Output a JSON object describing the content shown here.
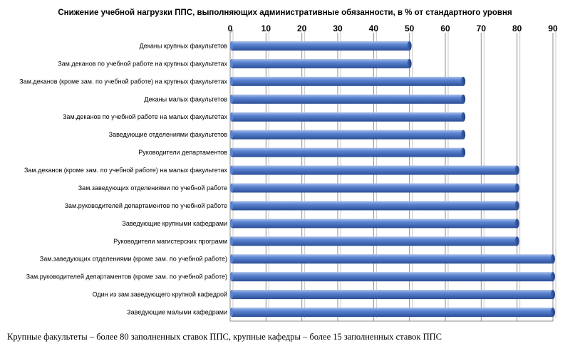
{
  "chart_data": {
    "type": "bar",
    "orientation": "horizontal",
    "title": "Снижение учебной нагрузки ППС, выполняющих административные обязанности, в % от стандартного уровня",
    "categories": [
      "Деканы крупных факультетов",
      "Зам.деканов по учебной работе на крупных факультетах",
      "Зам.деканов (кроме зам. по учебной работе) на крупных факультетах",
      "Деканы малых факультетов",
      "Зам.деканов по учебной работе на малых факультетах",
      "Заведующие отделениями факультетов",
      "Руководители департаментов",
      "Зам.деканов (кроме зам. по учебной работе) на малых факультетах",
      "Зам.заведующих отделениями по учебной работе",
      "Зам.руководителей департаментов по учебной работе",
      "Заведующие крупными кафедрами",
      "Руководители магистерских программ",
      "Зам.заведующих отделениями (кроме зам. по учебной работе)",
      "Зам.руководителей департаментов (кроме зам. по учебной работе)",
      "Один из зам.заведующего крупной кафедрой",
      "Заведующие малыми кафедрами"
    ],
    "values": [
      50,
      50,
      65,
      65,
      65,
      65,
      65,
      80,
      80,
      80,
      80,
      80,
      90,
      90,
      90,
      90
    ],
    "xlim": [
      0,
      90
    ],
    "xticks": [
      "0",
      "10",
      "20",
      "30",
      "40",
      "50",
      "60",
      "70",
      "80",
      "90"
    ],
    "axis_position": "top",
    "grid": true,
    "legend": "none",
    "colors": {
      "bar_light": "#7fa0dc",
      "bar_mid": "#4a74c8",
      "bar_dark": "#2d4f96",
      "grid": "#8c8c8c"
    }
  },
  "footnote": "Крупные факультеты – более 80 заполненных ставок ППС, крупные кафедры – более 15 заполненных ставок ППС"
}
